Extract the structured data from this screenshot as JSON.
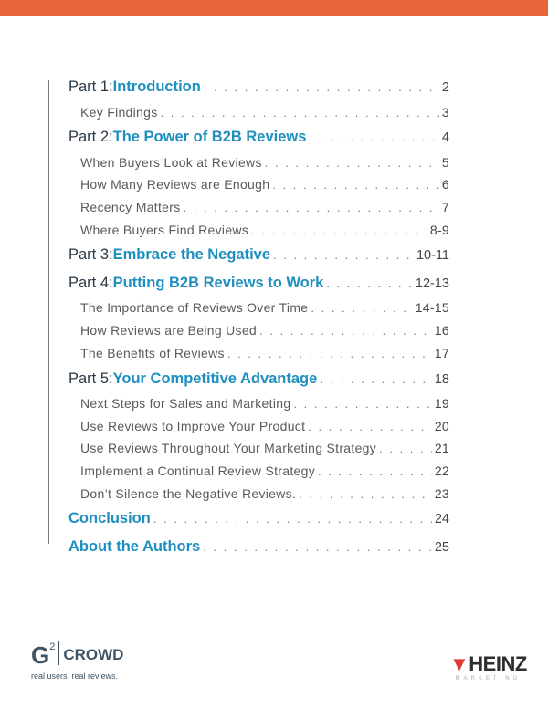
{
  "colors": {
    "accent_bar": "#e8643a",
    "link_blue": "#1f8fbf",
    "heinz_red": "#e03a30"
  },
  "toc": [
    {
      "level": "main",
      "prefix": "Part 1: ",
      "title": "Introduction",
      "page": "2"
    },
    {
      "level": "sub",
      "title": "Key Findings",
      "page": "3"
    },
    {
      "level": "main",
      "prefix": "Part 2: ",
      "title": "The Power of B2B Reviews",
      "page": "4"
    },
    {
      "level": "sub",
      "title": "When Buyers Look at Reviews",
      "page": "5"
    },
    {
      "level": "sub",
      "title": "How Many Reviews are Enough",
      "page": "6"
    },
    {
      "level": "sub",
      "title": "Recency Matters",
      "page": "7"
    },
    {
      "level": "sub",
      "title": "Where Buyers Find Reviews",
      "page": "8-9"
    },
    {
      "level": "main",
      "prefix": "Part 3: ",
      "title": "Embrace the Negative",
      "page": "10-11"
    },
    {
      "level": "main",
      "prefix": "Part 4: ",
      "title": "Putting B2B Reviews to Work",
      "page": "12-13"
    },
    {
      "level": "sub",
      "title": "The Importance of Reviews Over Time",
      "page": "14-15"
    },
    {
      "level": "sub",
      "title": "How Reviews are Being Used",
      "page": "16"
    },
    {
      "level": "sub",
      "title": "The Benefits of Reviews",
      "page": "17"
    },
    {
      "level": "main",
      "prefix": "Part 5: ",
      "title": "Your Competitive Advantage",
      "page": "18"
    },
    {
      "level": "sub",
      "title": "Next Steps for Sales and Marketing",
      "page": "19"
    },
    {
      "level": "sub",
      "title": "Use Reviews to Improve Your Product",
      "page": "20"
    },
    {
      "level": "sub",
      "title": "Use Reviews Throughout Your Marketing Strategy",
      "page": "21"
    },
    {
      "level": "sub",
      "title": "Implement a Continual Review Strategy",
      "page": "22"
    },
    {
      "level": "sub",
      "title": "Don’t Silence the Negative Reviews.",
      "page": "23"
    },
    {
      "level": "main",
      "prefix": "",
      "title": "Conclusion",
      "page": "24"
    },
    {
      "level": "main",
      "prefix": "",
      "title": "About the Authors",
      "page": "25"
    }
  ],
  "logos": {
    "g2": {
      "mark": "G",
      "sup": "2",
      "name": "CROWD",
      "tagline": "real users. real reviews."
    },
    "heinz": {
      "name": "HEINZ",
      "sub": "MARKETING"
    }
  }
}
